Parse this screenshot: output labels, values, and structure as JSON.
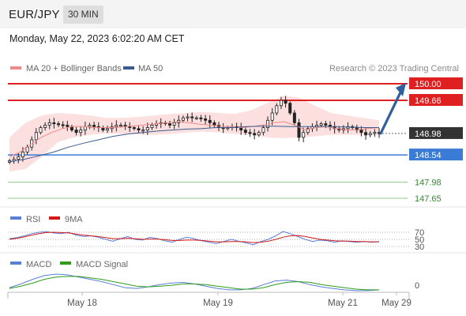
{
  "header": {
    "symbol": "EUR/JPY",
    "interval": "30 MIN",
    "timestamp": "Monday, May 22, 2023 6:02:20 AM CET"
  },
  "colors": {
    "ma20": "#f08a8a",
    "ma50": "#3b5b8e",
    "band": "#fbd5d5",
    "resistance": "#e02020",
    "current": "#333333",
    "pivot": "#3a7bd5",
    "support": "#2e8b2e",
    "support_line": "#8cc98c",
    "arrow": "#2f5f9c",
    "rsi": "#5a7fd6",
    "rsi_ma": "#d01818",
    "macd": "#5a7fd6",
    "macd_signal": "#2e9c1a"
  },
  "chart_data": [
    {
      "type": "candlestick",
      "legend": [
        {
          "name": "MA 20 + Bollinger Bands",
          "color": "#f08a8a"
        },
        {
          "name": "MA 50",
          "color": "#3b5b8e"
        }
      ],
      "credit": "Research © 2023 Trading Central",
      "x_ticks": [
        "May 18",
        "May 19",
        "May 21",
        "May 29"
      ],
      "y_range": [
        147.65,
        150.0
      ],
      "grid": false,
      "price_levels": [
        {
          "label": "150.00",
          "value": 150.0,
          "role": "resistance"
        },
        {
          "label": "149.66",
          "value": 149.66,
          "role": "resistance"
        },
        {
          "label": "148.98",
          "value": 148.98,
          "role": "current"
        },
        {
          "label": "148.54",
          "value": 148.54,
          "role": "pivot"
        },
        {
          "label": "147.98",
          "value": 147.98,
          "role": "support"
        },
        {
          "label": "147.65",
          "value": 147.65,
          "role": "support"
        }
      ],
      "close_path": [
        148.42,
        148.45,
        148.5,
        148.6,
        148.7,
        148.85,
        149.0,
        149.1,
        149.15,
        149.2,
        149.18,
        149.16,
        149.15,
        149.12,
        149.05,
        149.0,
        149.05,
        149.12,
        149.15,
        149.12,
        149.1,
        149.05,
        149.08,
        149.12,
        149.15,
        149.15,
        149.12,
        149.1,
        149.08,
        149.05,
        149.05,
        149.1,
        149.15,
        149.18,
        149.2,
        149.18,
        149.15,
        149.2,
        149.25,
        149.3,
        149.32,
        149.3,
        149.3,
        149.28,
        149.25,
        149.2,
        149.15,
        149.1,
        149.08,
        149.1,
        149.12,
        149.1,
        149.05,
        149.0,
        148.98,
        148.95,
        149.0,
        149.1,
        149.25,
        149.4,
        149.55,
        149.66,
        149.6,
        149.4,
        149.2,
        148.9,
        149.0,
        149.08,
        149.12,
        149.15,
        149.18,
        149.15,
        149.12,
        149.08,
        149.05,
        149.08,
        149.12,
        149.1,
        149.05,
        149.0,
        148.95,
        148.98,
        149.0,
        148.98
      ],
      "ma20": [
        148.5,
        148.6,
        148.75,
        148.9,
        149.0,
        149.08,
        149.12,
        149.12,
        149.1,
        149.1,
        149.1,
        149.12,
        149.14,
        149.16,
        149.18,
        149.2,
        149.22,
        149.2,
        149.17,
        149.15,
        149.13,
        149.12,
        149.1,
        149.12,
        149.15,
        149.2,
        149.22,
        149.15,
        149.05,
        149.1,
        149.12,
        149.08,
        149.05,
        149.06,
        149.08,
        149.1
      ],
      "ma50": [
        148.4,
        148.45,
        148.52,
        148.6,
        148.7,
        148.78,
        148.85,
        148.92,
        148.97,
        149.0,
        149.03,
        149.05,
        149.07,
        149.08,
        149.1,
        149.1,
        149.12,
        149.13,
        149.13,
        149.12,
        149.12,
        149.12,
        149.12,
        149.11,
        149.1,
        149.1
      ],
      "bb_upper": [
        148.9,
        149.2,
        149.35,
        149.4,
        149.38,
        149.35,
        149.3,
        149.3,
        149.32,
        149.35,
        149.38,
        149.4,
        149.42,
        149.4,
        149.38,
        149.45,
        149.6,
        149.75,
        149.72,
        149.55,
        149.4,
        149.35,
        149.3,
        149.25
      ],
      "bb_lower": [
        148.2,
        148.25,
        148.5,
        148.8,
        148.9,
        148.95,
        148.98,
        148.97,
        148.96,
        148.95,
        148.97,
        149.0,
        149.02,
        149.0,
        148.97,
        148.95,
        148.9,
        148.88,
        148.9,
        148.92,
        148.95,
        148.95,
        148.95,
        148.95
      ],
      "forecast": {
        "from": 148.98,
        "to": 150.0
      }
    },
    {
      "type": "line",
      "legend": [
        {
          "name": "RSI",
          "color": "#5a7fd6"
        },
        {
          "name": "9MA",
          "color": "#d01818"
        }
      ],
      "y_ticks": [
        "70",
        "50",
        "30"
      ],
      "y_range": [
        0,
        100
      ],
      "series": [
        {
          "name": "RSI",
          "values": [
            52,
            55,
            60,
            66,
            70,
            72,
            68,
            66,
            70,
            62,
            58,
            60,
            56,
            50,
            45,
            52,
            58,
            50,
            48,
            56,
            52,
            46,
            42,
            50,
            56,
            52,
            46,
            42,
            38,
            44,
            50,
            45,
            40,
            35,
            44,
            50,
            60,
            72,
            66,
            58,
            50,
            44,
            48,
            46,
            42,
            46,
            44,
            42,
            44,
            42,
            44
          ]
        },
        {
          "name": "9MA",
          "values": [
            50,
            53,
            57,
            62,
            66,
            69,
            70,
            69,
            68,
            65,
            62,
            60,
            58,
            55,
            52,
            52,
            53,
            52,
            50,
            51,
            51,
            49,
            47,
            47,
            48,
            48,
            47,
            45,
            43,
            43,
            44,
            44,
            43,
            41,
            42,
            45,
            50,
            56,
            60,
            61,
            58,
            54,
            50,
            48,
            46,
            45,
            45,
            44,
            44,
            43,
            43
          ]
        }
      ]
    },
    {
      "type": "line",
      "legend": [
        {
          "name": "MACD",
          "color": "#5a7fd6"
        },
        {
          "name": "MACD Signal",
          "color": "#2e9c1a"
        }
      ],
      "y_ticks": [
        "0"
      ],
      "y_range": [
        -0.1,
        0.25
      ],
      "series": [
        {
          "name": "MACD",
          "values": [
            0.02,
            0.07,
            0.13,
            0.18,
            0.2,
            0.19,
            0.16,
            0.13,
            0.1,
            0.06,
            0.02,
            0.01,
            0.03,
            0.06,
            0.08,
            0.09,
            0.07,
            0.04,
            0.01,
            -0.01,
            -0.01,
            0.01,
            0.06,
            0.11,
            0.12,
            0.1,
            0.06,
            0.03,
            0.01,
            -0.01,
            -0.02,
            -0.02,
            -0.01
          ]
        },
        {
          "name": "MACD Signal",
          "values": [
            0.01,
            0.04,
            0.08,
            0.13,
            0.16,
            0.17,
            0.17,
            0.15,
            0.13,
            0.1,
            0.07,
            0.04,
            0.03,
            0.04,
            0.05,
            0.07,
            0.07,
            0.06,
            0.04,
            0.02,
            0.0,
            0.0,
            0.02,
            0.06,
            0.09,
            0.1,
            0.09,
            0.06,
            0.04,
            0.02,
            0.0,
            -0.01,
            -0.01
          ]
        }
      ]
    }
  ]
}
